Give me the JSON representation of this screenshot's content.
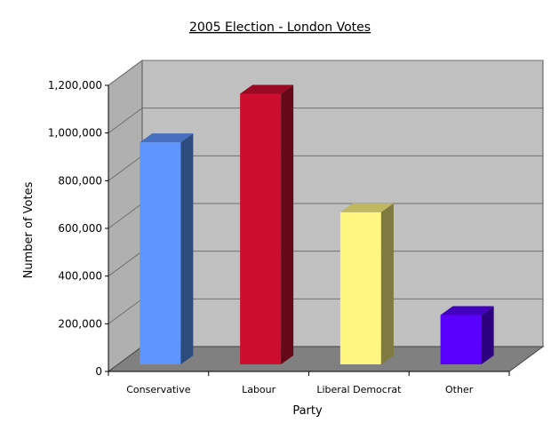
{
  "chart_data": {
    "type": "bar",
    "title": "2005 Election - London Votes",
    "xlabel": "Party",
    "ylabel": "Number of Votes",
    "categories": [
      "Conservative",
      "Labour",
      "Liberal Democrat",
      "Other"
    ],
    "values": [
      931000,
      1135000,
      638000,
      207000
    ],
    "ylim": [
      0,
      1200000
    ],
    "yticks": [
      0,
      200000,
      400000,
      600000,
      800000,
      1000000,
      1200000
    ],
    "ytick_labels": [
      "0",
      "200,000",
      "400,000",
      "600,000",
      "800,000",
      "1,000,000",
      "1,200,000"
    ],
    "grid": true,
    "legend": "none",
    "style": "3d",
    "colors": {
      "bars": [
        "#5e95ff",
        "#cd0d2d",
        "#fff580",
        "#5a00ff"
      ],
      "bar_sides": [
        "#2e4b7e",
        "#650817",
        "#7f7a40",
        "#2d007f"
      ],
      "bar_tops": [
        "#4670bf",
        "#9a0a22",
        "#bfb860",
        "#4400bf"
      ],
      "wall": "#c0c0c0",
      "floor": "#808080",
      "side_wall": "#b0b0b0",
      "gridline": "#707070"
    }
  }
}
